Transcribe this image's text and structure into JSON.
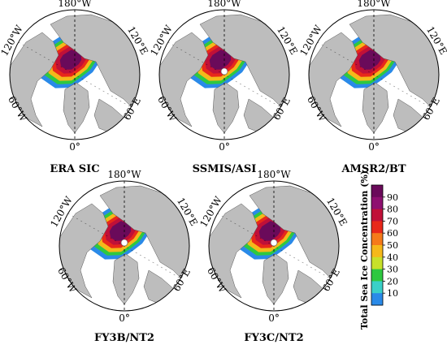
{
  "panels": [
    {
      "title": "ERA SIC",
      "top": "180°W",
      "left": "120°W",
      "right": "120°E",
      "lowleft": "60°W",
      "lowright": "60°E",
      "bottom": "0°",
      "pole_hole": false
    },
    {
      "title": "SSMIS/ASI",
      "top": "180°W",
      "left": "120°W",
      "right": "120°E",
      "lowleft": "60°W",
      "lowright": "60°E",
      "bottom": "0°",
      "pole_hole": true
    },
    {
      "title": "AMSR2/BT",
      "top": "180°W",
      "left": "120°W",
      "right": "120°E",
      "lowleft": "60°W",
      "lowright": "60°E",
      "bottom": "0°",
      "pole_hole": false
    },
    {
      "title": "FY3B/NT2",
      "top": "180°W",
      "left": "120°W",
      "right": "120°E",
      "lowleft": "60°W",
      "lowright": "60°E",
      "bottom": "0°",
      "pole_hole": true
    },
    {
      "title": "FY3C/NT2",
      "top": "180°W",
      "left": "120°W",
      "right": "120°E",
      "lowleft": "60°W",
      "lowright": "60°E",
      "bottom": "0°",
      "pole_hole": true
    }
  ],
  "colorbar": {
    "label": "Total Sea Ice Concentration (%)",
    "ticks": [
      "90",
      "80",
      "70",
      "60",
      "50",
      "40",
      "30",
      "20",
      "10"
    ],
    "colors": [
      "#6a0a5a",
      "#8e1070",
      "#c01038",
      "#e8281a",
      "#f57a1a",
      "#f5b81a",
      "#c8e02a",
      "#2ec840",
      "#3ad0c8",
      "#2a8ae8"
    ]
  }
}
